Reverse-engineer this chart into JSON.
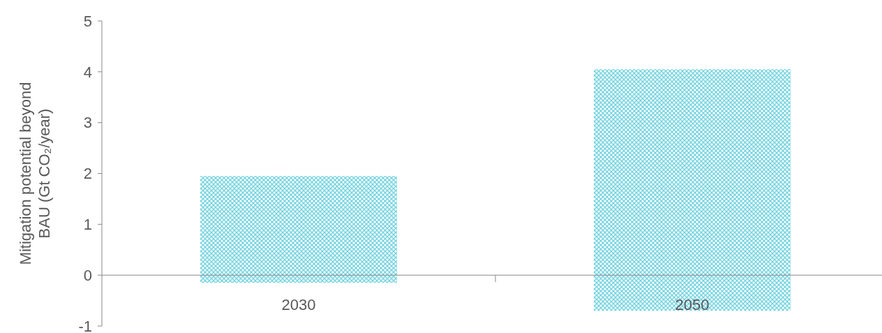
{
  "chart_data": {
    "type": "bar",
    "ylabel": "Mitigation potential beyond\nBAU (Gt CO₂/year)",
    "categories": [
      "2030",
      "2050"
    ],
    "values": [
      2.1,
      4.75
    ],
    "base": [
      -0.15,
      -0.7
    ],
    "color": "#6fd3e0",
    "ylim": [
      -1,
      5
    ],
    "yticks": [
      -1,
      0,
      1,
      2,
      3,
      4,
      5
    ],
    "grid": false
  }
}
